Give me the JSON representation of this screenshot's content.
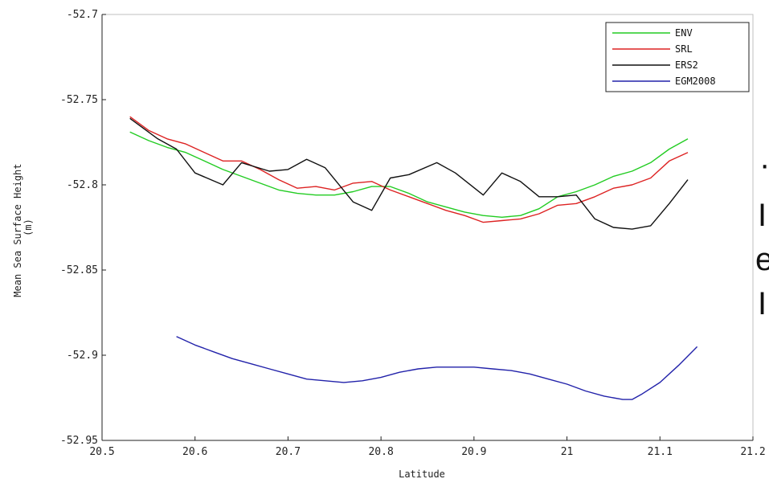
{
  "chart_data": {
    "type": "line",
    "title": "",
    "xlabel": "Latitude",
    "ylabel_lines": [
      "Mean Sea Surface Height",
      "(m)"
    ],
    "xlim": [
      20.5,
      21.2
    ],
    "ylim": [
      -52.95,
      -52.7
    ],
    "x_ticks": [
      20.5,
      20.6,
      20.7,
      20.8,
      20.9,
      21,
      21.1,
      21.2
    ],
    "x_tick_labels": [
      "20.5",
      "20.6",
      "20.7",
      "20.8",
      "20.9",
      "21",
      "21.1",
      "21.2"
    ],
    "y_ticks": [
      -52.7,
      -52.75,
      -52.8,
      -52.85,
      -52.9,
      -52.95
    ],
    "y_tick_labels": [
      "-52.7",
      "-52.75",
      "-52.8",
      "-52.85",
      "-52.9",
      "-52.95"
    ],
    "grid": false,
    "legend_position": "top-right",
    "series": [
      {
        "name": "ENV",
        "color": "#22cc22",
        "x": [
          20.53,
          20.55,
          20.57,
          20.59,
          20.61,
          20.63,
          20.65,
          20.67,
          20.69,
          20.71,
          20.73,
          20.75,
          20.77,
          20.79,
          20.81,
          20.83,
          20.85,
          20.87,
          20.89,
          20.91,
          20.93,
          20.95,
          20.97,
          20.99,
          21.01,
          21.03,
          21.05,
          21.07,
          21.09,
          21.11,
          21.13
        ],
        "y": [
          -52.769,
          -52.774,
          -52.778,
          -52.781,
          -52.786,
          -52.791,
          -52.795,
          -52.799,
          -52.803,
          -52.805,
          -52.806,
          -52.806,
          -52.804,
          -52.801,
          -52.801,
          -52.805,
          -52.81,
          -52.813,
          -52.816,
          -52.818,
          -52.819,
          -52.818,
          -52.814,
          -52.807,
          -52.804,
          -52.8,
          -52.795,
          -52.792,
          -52.787,
          -52.779,
          -52.773
        ]
      },
      {
        "name": "SRL",
        "color": "#dd2222",
        "x": [
          20.53,
          20.55,
          20.57,
          20.59,
          20.61,
          20.63,
          20.65,
          20.67,
          20.69,
          20.71,
          20.73,
          20.75,
          20.77,
          20.79,
          20.81,
          20.83,
          20.85,
          20.87,
          20.89,
          20.91,
          20.93,
          20.95,
          20.97,
          20.99,
          21.01,
          21.03,
          21.05,
          21.07,
          21.09,
          21.11,
          21.13
        ],
        "y": [
          -52.76,
          -52.768,
          -52.773,
          -52.776,
          -52.781,
          -52.786,
          -52.786,
          -52.791,
          -52.797,
          -52.802,
          -52.801,
          -52.803,
          -52.799,
          -52.798,
          -52.803,
          -52.807,
          -52.811,
          -52.815,
          -52.818,
          -52.822,
          -52.821,
          -52.82,
          -52.817,
          -52.812,
          -52.811,
          -52.807,
          -52.802,
          -52.8,
          -52.796,
          -52.786,
          -52.781
        ]
      },
      {
        "name": "ERS2",
        "color": "#111111",
        "x": [
          20.53,
          20.56,
          20.58,
          20.6,
          20.63,
          20.65,
          20.68,
          20.7,
          20.72,
          20.74,
          20.77,
          20.79,
          20.81,
          20.83,
          20.86,
          20.88,
          20.91,
          20.93,
          20.95,
          20.97,
          20.99,
          21.01,
          21.03,
          21.05,
          21.07,
          21.09,
          21.11,
          21.13
        ],
        "y": [
          -52.761,
          -52.773,
          -52.779,
          -52.793,
          -52.8,
          -52.787,
          -52.792,
          -52.791,
          -52.785,
          -52.79,
          -52.81,
          -52.815,
          -52.796,
          -52.794,
          -52.787,
          -52.793,
          -52.806,
          -52.793,
          -52.798,
          -52.807,
          -52.807,
          -52.806,
          -52.82,
          -52.825,
          -52.826,
          -52.824,
          -52.811,
          -52.797
        ]
      },
      {
        "name": "EGM2008",
        "color": "#2222aa",
        "x": [
          20.58,
          20.6,
          20.62,
          20.64,
          20.66,
          20.68,
          20.7,
          20.72,
          20.74,
          20.76,
          20.78,
          20.8,
          20.82,
          20.84,
          20.86,
          20.88,
          20.9,
          20.92,
          20.94,
          20.96,
          20.98,
          21,
          21.02,
          21.04,
          21.06,
          21.07,
          21.08,
          21.1,
          21.12,
          21.14
        ],
        "y": [
          -52.889,
          -52.894,
          -52.898,
          -52.902,
          -52.905,
          -52.908,
          -52.911,
          -52.914,
          -52.915,
          -52.916,
          -52.915,
          -52.913,
          -52.91,
          -52.908,
          -52.907,
          -52.907,
          -52.907,
          -52.908,
          -52.909,
          -52.911,
          -52.914,
          -52.917,
          -52.921,
          -52.924,
          -52.926,
          -52.926,
          -52.923,
          -52.916,
          -52.906,
          -52.895
        ]
      }
    ]
  },
  "right_margin_glyphs": [
    "·",
    "I",
    "e",
    "I"
  ]
}
